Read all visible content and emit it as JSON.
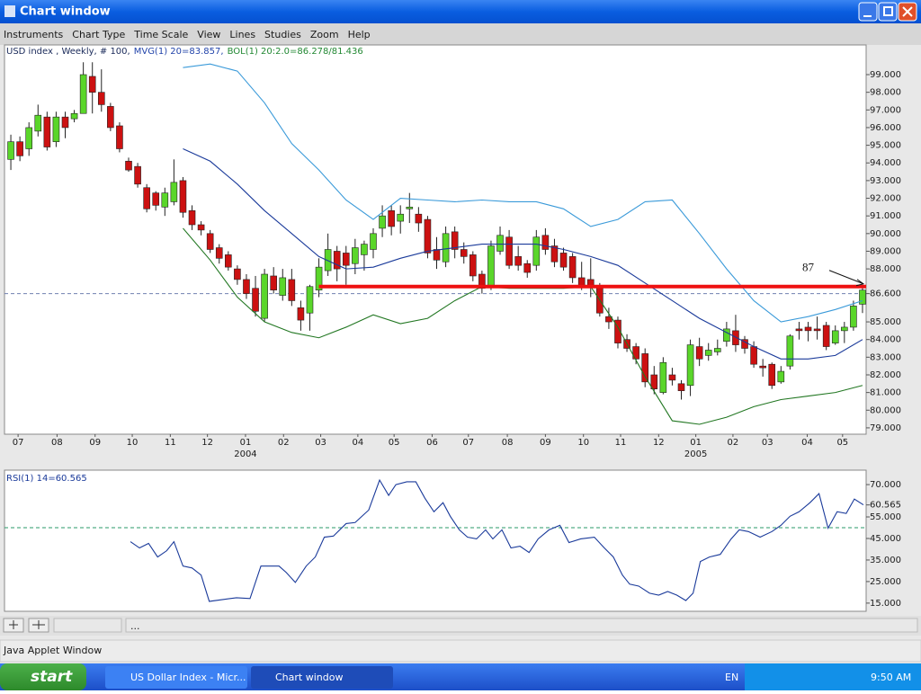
{
  "window": {
    "title": "Chart window"
  },
  "menu": [
    "Instruments",
    "Chart Type",
    "Time Scale",
    "View",
    "Lines",
    "Studies",
    "Zoom",
    "Help"
  ],
  "chart_data": [
    {
      "type": "candlestick",
      "subtitle": [
        "USD index , Weekly, # 100,",
        "MVG(1) 20=83.857,",
        "BOL(1) 20:2.0=86.278/81.436"
      ],
      "subtitle_colors": [
        "#1a2a5a",
        "#2244aa",
        "#228833"
      ],
      "open": [
        94.2,
        95.2,
        94.8,
        95.8,
        96.6,
        95.2,
        96.6,
        96.5,
        96.8,
        98.9,
        98.0,
        97.2,
        96.1,
        94.1,
        93.8,
        92.6,
        92.3,
        91.5,
        91.8,
        93.0,
        91.3,
        90.5,
        90.0,
        89.2,
        88.8,
        88.0,
        87.4,
        86.9,
        85.2,
        87.6,
        86.5,
        87.4,
        85.8,
        85.5,
        86.8,
        87.9,
        89.0,
        88.9,
        88.3,
        88.8,
        89.1,
        90.3,
        91.3,
        90.7,
        91.4,
        91.1,
        90.8,
        89.1,
        88.4,
        90.1,
        89.1,
        88.8,
        87.7,
        87.0,
        89.0,
        89.8,
        88.7,
        88.3,
        88.2,
        89.9,
        89.3,
        88.9,
        88.7,
        87.5,
        87.4,
        87.0,
        85.3,
        85.1,
        84.0,
        83.6,
        83.2,
        82.0,
        81.0,
        82.0,
        81.5,
        81.4,
        83.6,
        83.1,
        83.3,
        83.9,
        84.5,
        84.0,
        83.6,
        82.5,
        82.6,
        81.6,
        82.5,
        84.6,
        84.7,
        84.6,
        84.8,
        83.8,
        84.5,
        84.7,
        86.0
      ],
      "high": [
        95.6,
        95.5,
        96.3,
        97.3,
        96.9,
        96.9,
        96.9,
        97.0,
        99.7,
        99.7,
        99.3,
        97.4,
        96.3,
        94.3,
        94.0,
        92.8,
        92.4,
        92.6,
        94.2,
        93.2,
        91.6,
        90.7,
        90.2,
        89.4,
        89.0,
        88.2,
        87.7,
        87.6,
        88.0,
        88.1,
        88.0,
        88.0,
        86.2,
        87.1,
        88.6,
        90.0,
        89.3,
        89.3,
        89.7,
        89.6,
        90.3,
        91.6,
        91.6,
        91.6,
        92.3,
        91.5,
        91.0,
        89.8,
        90.4,
        90.4,
        89.5,
        89.0,
        87.9,
        89.6,
        90.4,
        90.2,
        89.3,
        88.5,
        90.2,
        90.3,
        89.7,
        89.2,
        88.9,
        88.4,
        88.6,
        87.2,
        85.8,
        85.3,
        84.3,
        83.8,
        83.5,
        82.5,
        83.0,
        82.4,
        81.7,
        84.0,
        84.1,
        83.8,
        84.0,
        85.0,
        85.4,
        84.2,
        83.9,
        82.9,
        82.7,
        82.5,
        84.3,
        85.0,
        85.0,
        85.3,
        85.0,
        84.8,
        85.0,
        86.2,
        87.0
      ],
      "low": [
        93.6,
        94.1,
        94.4,
        95.5,
        94.7,
        94.9,
        95.4,
        96.3,
        96.8,
        96.8,
        96.9,
        95.8,
        94.6,
        93.5,
        92.6,
        91.2,
        91.3,
        91.0,
        91.6,
        90.9,
        90.2,
        89.9,
        88.9,
        88.3,
        87.9,
        87.1,
        86.3,
        85.3,
        85.0,
        86.6,
        86.2,
        85.9,
        84.5,
        84.5,
        86.4,
        87.6,
        87.3,
        87.1,
        87.7,
        87.9,
        88.6,
        89.8,
        89.9,
        90.0,
        90.6,
        90.1,
        88.6,
        88.0,
        88.1,
        88.6,
        88.3,
        87.3,
        86.6,
        86.8,
        88.8,
        88.0,
        87.9,
        87.5,
        87.9,
        88.8,
        88.1,
        87.9,
        87.2,
        86.8,
        86.4,
        85.3,
        84.6,
        83.5,
        83.3,
        82.6,
        81.3,
        80.9,
        80.9,
        81.4,
        80.6,
        80.8,
        82.5,
        82.8,
        83.1,
        83.6,
        83.3,
        83.2,
        82.4,
        81.9,
        81.2,
        81.5,
        82.3,
        84.0,
        83.9,
        84.0,
        83.4,
        83.7,
        83.8,
        84.5,
        85.5
      ],
      "close": [
        95.2,
        94.4,
        96.0,
        96.7,
        94.9,
        96.6,
        96.0,
        96.8,
        99.0,
        98.0,
        97.3,
        96.0,
        94.8,
        93.6,
        92.8,
        91.4,
        91.6,
        92.3,
        92.9,
        91.2,
        90.5,
        90.2,
        89.1,
        88.6,
        88.1,
        87.4,
        86.6,
        85.6,
        87.7,
        86.8,
        87.5,
        86.2,
        85.1,
        87.0,
        88.1,
        89.1,
        88.0,
        88.2,
        89.2,
        89.4,
        90.0,
        91.0,
        90.4,
        91.1,
        91.5,
        90.6,
        88.9,
        88.5,
        90.0,
        89.1,
        88.7,
        87.6,
        86.9,
        89.3,
        89.9,
        88.2,
        88.2,
        87.8,
        89.8,
        89.1,
        88.4,
        88.1,
        87.5,
        87.0,
        87.0,
        85.5,
        85.0,
        83.8,
        83.5,
        82.9,
        81.6,
        81.2,
        82.7,
        81.7,
        81.1,
        83.7,
        82.9,
        83.4,
        83.5,
        84.6,
        83.7,
        83.5,
        82.6,
        82.4,
        81.4,
        82.2,
        84.2,
        84.5,
        84.5,
        84.5,
        83.6,
        84.5,
        84.7,
        85.9,
        86.8
      ],
      "up_color": "#5ad62a",
      "down_color": "#cc1111",
      "series": [
        {
          "color": "#3a9ad9",
          "x": [
            19,
            22,
            25,
            28,
            31,
            34,
            37,
            40,
            43,
            46,
            49,
            52,
            55,
            58,
            61,
            64,
            67,
            70,
            73,
            76,
            79,
            82,
            85,
            88,
            91,
            94
          ],
          "values": [
            99.4,
            99.6,
            99.2,
            97.4,
            95.1,
            93.6,
            91.9,
            90.8,
            92.0,
            91.9,
            91.8,
            91.9,
            91.8,
            91.8,
            91.4,
            90.4,
            90.8,
            91.8,
            91.9,
            90.0,
            88.0,
            86.2,
            85.0,
            85.3,
            85.7,
            86.2
          ]
        },
        {
          "color": "#1a3a9a",
          "x": [
            19,
            22,
            25,
            28,
            31,
            34,
            37,
            40,
            43,
            46,
            49,
            52,
            55,
            58,
            61,
            64,
            67,
            70,
            73,
            76,
            79,
            82,
            85,
            88,
            91,
            94
          ],
          "values": [
            94.8,
            94.1,
            92.8,
            91.3,
            90.0,
            88.7,
            88.0,
            88.1,
            88.6,
            89.0,
            89.2,
            89.4,
            89.4,
            89.4,
            89.1,
            88.7,
            88.2,
            87.2,
            86.2,
            85.2,
            84.4,
            83.6,
            82.9,
            82.9,
            83.1,
            84.0
          ]
        },
        {
          "color": "#227722",
          "x": [
            19,
            22,
            25,
            28,
            31,
            34,
            37,
            40,
            43,
            46,
            49,
            52,
            55,
            58,
            61,
            64,
            67,
            70,
            73,
            76,
            79,
            82,
            85,
            88,
            91,
            94
          ],
          "values": [
            90.3,
            88.5,
            86.4,
            85.0,
            84.4,
            84.1,
            84.7,
            85.4,
            84.9,
            85.2,
            86.2,
            87.0,
            86.9,
            86.9,
            86.9,
            87.0,
            84.7,
            81.9,
            79.4,
            79.2,
            79.6,
            80.2,
            80.6,
            80.8,
            81.0,
            81.4
          ]
        }
      ],
      "xlim": [
        -0.7,
        94.4
      ],
      "xticks": [
        {
          "value": 0.8,
          "label": "07"
        },
        {
          "value": 5.1,
          "label": "08"
        },
        {
          "value": 9.3,
          "label": "09"
        },
        {
          "value": 13.4,
          "label": "10"
        },
        {
          "value": 17.6,
          "label": "11"
        },
        {
          "value": 21.7,
          "label": "12"
        },
        {
          "value": 25.9,
          "label": "01"
        },
        {
          "value": 30.1,
          "label": "02"
        },
        {
          "value": 34.2,
          "label": "03"
        },
        {
          "value": 38.3,
          "label": "04"
        },
        {
          "value": 42.3,
          "label": "05"
        },
        {
          "value": 46.5,
          "label": "06"
        },
        {
          "value": 50.5,
          "label": "07"
        },
        {
          "value": 54.8,
          "label": "08"
        },
        {
          "value": 59.0,
          "label": "09"
        },
        {
          "value": 63.2,
          "label": "10"
        },
        {
          "value": 67.3,
          "label": "11"
        },
        {
          "value": 71.5,
          "label": "12"
        },
        {
          "value": 75.6,
          "label": "01"
        },
        {
          "value": 79.7,
          "label": "02"
        },
        {
          "value": 83.5,
          "label": "03"
        },
        {
          "value": 87.9,
          "label": "04"
        },
        {
          "value": 91.8,
          "label": "05"
        }
      ],
      "year_ticks": [
        {
          "value": 25.9,
          "label": "2004"
        },
        {
          "value": 75.6,
          "label": "2005"
        }
      ],
      "ylim": [
        78.64,
        100.68
      ],
      "yticks": [
        {
          "value": 99,
          "label": "99.000"
        },
        {
          "value": 98,
          "label": "98.000"
        },
        {
          "value": 97,
          "label": "97.000"
        },
        {
          "value": 96,
          "label": "96.000"
        },
        {
          "value": 95,
          "label": "95.000"
        },
        {
          "value": 94,
          "label": "94.000"
        },
        {
          "value": 93,
          "label": "93.000"
        },
        {
          "value": 92,
          "label": "92.000"
        },
        {
          "value": 91,
          "label": "91.000"
        },
        {
          "value": 90,
          "label": "90.000"
        },
        {
          "value": 89,
          "label": "89.000"
        },
        {
          "value": 88,
          "label": "88.000"
        },
        {
          "value": 86.6,
          "label": "86.600"
        },
        {
          "value": 85,
          "label": "85.000"
        },
        {
          "value": 84,
          "label": "84.000"
        },
        {
          "value": 83,
          "label": "83.000"
        },
        {
          "value": 82,
          "label": "82.000"
        },
        {
          "value": 81,
          "label": "81.000"
        },
        {
          "value": 80,
          "label": "80.000"
        },
        {
          "value": 79,
          "label": "79.000"
        }
      ],
      "reference_line": 86.6,
      "hline": {
        "value": 87,
        "x_start": 34,
        "color": "#ee1111"
      },
      "annotation": "87"
    },
    {
      "type": "line",
      "label": "RSI(1) 14=60.565",
      "series": [
        {
          "color": "#1a3a9a",
          "x": [
            13.2,
            14.2,
            15.2,
            16.2,
            17.2,
            18.0,
            19.0,
            20.0,
            21.0,
            21.9,
            24.9,
            26.4,
            27.6,
            29.6,
            30.4,
            31.4,
            32.6,
            33.6,
            34.6,
            35.6,
            37.0,
            38.0,
            39.5,
            40.7,
            41.7,
            42.5,
            43.7,
            44.7,
            45.7,
            46.7,
            47.7,
            48.5,
            49.5,
            50.4,
            51.4,
            52.4,
            53.2,
            54.2,
            55.2,
            56.2,
            57.2,
            58.2,
            59.4,
            60.6,
            61.6,
            62.9,
            64.4,
            65.5,
            66.5,
            67.5,
            68.3,
            69.3,
            70.5,
            71.5,
            72.5,
            73.5,
            74.5,
            75.3,
            76.1,
            77.1,
            78.3,
            79.5,
            80.4,
            81.4,
            82.7,
            84.0,
            85.0,
            86.0,
            87.0,
            88.2,
            89.2,
            90.2,
            91.2,
            92.2,
            93.1,
            94.1
          ],
          "values": [
            43.5,
            40.6,
            42.7,
            36.4,
            39.3,
            43.5,
            32.2,
            31.3,
            28.0,
            15.8,
            17.5,
            17.1,
            32.2,
            32.2,
            29.2,
            24.6,
            32.2,
            36.4,
            45.6,
            46.1,
            51.9,
            52.4,
            58.2,
            72.1,
            65.0,
            70.0,
            71.3,
            71.3,
            63.7,
            57.4,
            61.6,
            55.3,
            49.0,
            45.6,
            44.8,
            49.0,
            44.8,
            49.0,
            40.6,
            41.4,
            38.5,
            44.8,
            49.0,
            51.1,
            43.1,
            44.8,
            45.6,
            40.6,
            36.4,
            28.0,
            23.8,
            22.9,
            19.6,
            18.7,
            20.4,
            18.7,
            16.2,
            19.6,
            34.3,
            36.4,
            37.6,
            44.8,
            49.0,
            48.2,
            45.6,
            48.2,
            51.1,
            55.3,
            57.4,
            61.6,
            65.8,
            49.8,
            57.4,
            56.6,
            63.3,
            60.6
          ]
        }
      ],
      "xlim": [
        -0.7,
        94.4
      ],
      "ylim": [
        11.2,
        76.7
      ],
      "yticks": [
        {
          "value": 70,
          "label": "70.000"
        },
        60.565,
        {
          "value": 55,
          "label": "55.000"
        },
        {
          "value": 45,
          "label": "45.000"
        },
        {
          "value": 35,
          "label": "35.000"
        },
        {
          "value": 25,
          "label": "25.000"
        },
        {
          "value": 15,
          "label": "15.000"
        }
      ],
      "reference_line": 50
    }
  ],
  "toolbar": {
    "text": "..."
  },
  "status": "Java Applet Window",
  "taskbar": {
    "start": "start",
    "tasks": [
      "US Dollar Index - Micr...",
      "Chart window"
    ],
    "language": "EN",
    "clock": "9:50 AM"
  }
}
